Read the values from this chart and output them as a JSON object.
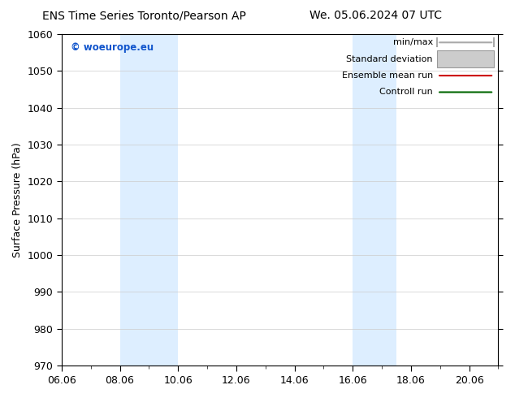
{
  "title_left": "ENS Time Series Toronto/Pearson AP",
  "title_right": "We. 05.06.2024 07 UTC",
  "ylabel": "Surface Pressure (hPa)",
  "ylim": [
    970,
    1060
  ],
  "yticks": [
    970,
    980,
    990,
    1000,
    1010,
    1020,
    1030,
    1040,
    1050,
    1060
  ],
  "xtick_labels": [
    "06.06",
    "08.06",
    "10.06",
    "12.06",
    "14.06",
    "16.06",
    "18.06",
    "20.06"
  ],
  "xtick_positions": [
    0,
    2,
    4,
    6,
    8,
    10,
    12,
    14
  ],
  "xlim": [
    0,
    15
  ],
  "shaded_bands": [
    {
      "start": 2,
      "end": 4
    },
    {
      "start": 10,
      "end": 11.5
    }
  ],
  "band_color": "#ddeeff",
  "watermark": "© woeurope.eu",
  "watermark_color": "#1155cc",
  "background_color": "#ffffff",
  "plot_background": "#ffffff",
  "title_fontsize": 10,
  "axis_fontsize": 9,
  "legend_fontsize": 8,
  "legend_items": [
    {
      "label": "min/max",
      "color": "#aaaaaa",
      "style": "minmax"
    },
    {
      "label": "Standard deviation",
      "color": "#cccccc",
      "style": "stddev"
    },
    {
      "label": "Ensemble mean run",
      "color": "#cc0000",
      "style": "line"
    },
    {
      "label": "Controll run",
      "color": "#006600",
      "style": "line"
    }
  ]
}
